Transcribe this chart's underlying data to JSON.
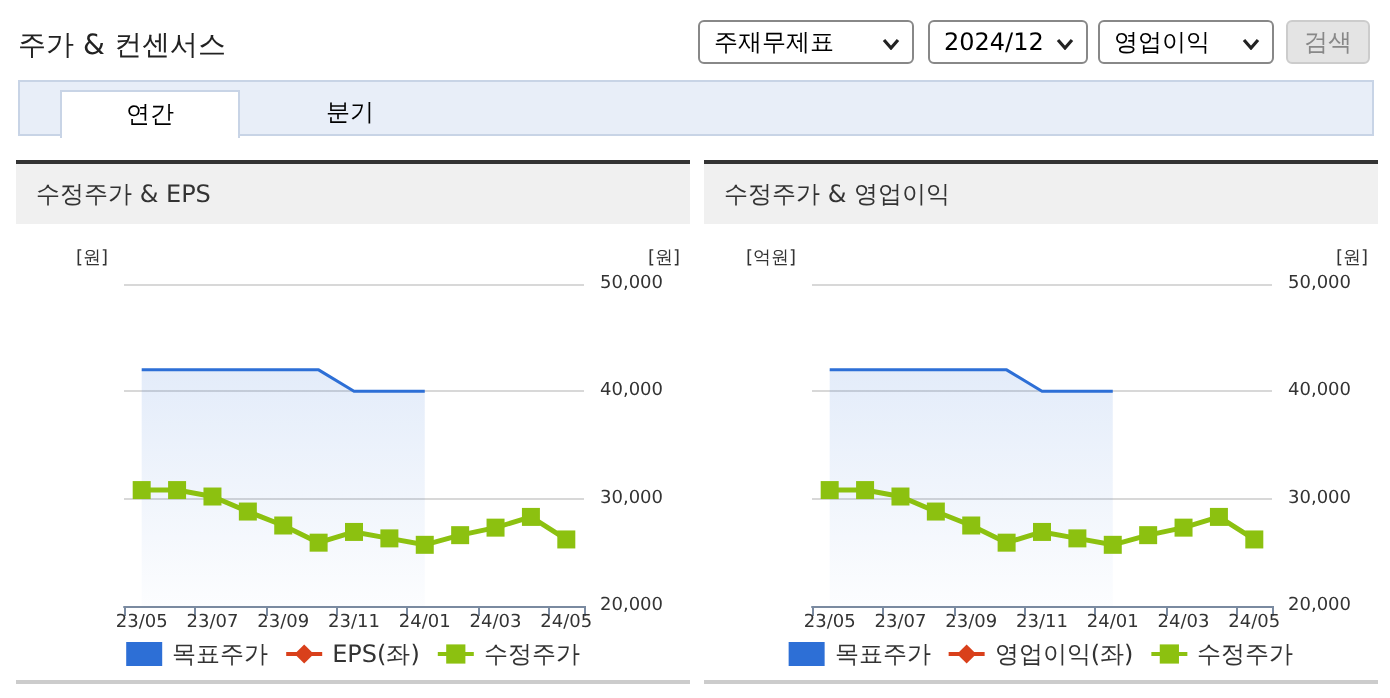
{
  "chart_data": [
    {
      "type": "other",
      "title": "주가 & 컨센서스",
      "annotations": [
        "주재무제표",
        "2024/12",
        "영업이익",
        "검색",
        "연간",
        "분기"
      ]
    },
    {
      "type": "line",
      "title": "수정주가 & EPS",
      "ylabel": "[원]",
      "y2label": "[원]",
      "categories": [
        "23/05",
        null,
        "23/07",
        null,
        "23/09",
        null,
        "23/11",
        null,
        "24/01",
        null,
        "24/03",
        null,
        "24/05"
      ],
      "series": [
        {
          "name": "목표주가",
          "type": "area",
          "axis": "y2",
          "marker": "none",
          "color": "#2d6fd6",
          "values": [
            42000,
            42000,
            42000,
            42000,
            42000,
            42000,
            40000,
            40000,
            40000,
            null,
            null,
            null,
            null
          ]
        },
        {
          "name": "EPS(좌)",
          "type": "line",
          "marker": "diamond",
          "color": "#d9401b",
          "values": [
            null,
            null,
            null,
            null,
            null,
            null,
            null,
            null,
            null,
            null,
            null,
            null,
            null
          ]
        },
        {
          "name": "수정주가",
          "type": "line",
          "axis": "y2",
          "marker": "square",
          "color": "#8cc110",
          "values": [
            30800,
            30800,
            30200,
            28800,
            27500,
            25900,
            26900,
            26300,
            25700,
            26600,
            27300,
            28300,
            26200
          ]
        }
      ],
      "y2lim": [
        20000,
        50000
      ],
      "y2ticks": [
        {
          "value": 20000,
          "label": "20,000"
        },
        {
          "value": 30000,
          "label": "30,000"
        },
        {
          "value": 40000,
          "label": "40,000"
        },
        {
          "value": 50000,
          "label": "50,000"
        }
      ],
      "grid": "y",
      "legend": "bottom"
    },
    {
      "type": "line",
      "title": "수정주가 & 영업이익",
      "ylabel": "[억원]",
      "y2label": "[원]",
      "categories": [
        "23/05",
        null,
        "23/07",
        null,
        "23/09",
        null,
        "23/11",
        null,
        "24/01",
        null,
        "24/03",
        null,
        "24/05"
      ],
      "series": [
        {
          "name": "목표주가",
          "type": "area",
          "axis": "y2",
          "marker": "none",
          "color": "#2d6fd6",
          "values": [
            42000,
            42000,
            42000,
            42000,
            42000,
            42000,
            40000,
            40000,
            40000,
            null,
            null,
            null,
            null
          ]
        },
        {
          "name": "영업이익(좌)",
          "type": "line",
          "marker": "diamond",
          "color": "#d9401b",
          "values": [
            null,
            null,
            null,
            null,
            null,
            null,
            null,
            null,
            null,
            null,
            null,
            null,
            null
          ]
        },
        {
          "name": "수정주가",
          "type": "line",
          "axis": "y2",
          "marker": "square",
          "color": "#8cc110",
          "values": [
            30800,
            30800,
            30200,
            28800,
            27500,
            25900,
            26900,
            26300,
            25700,
            26600,
            27300,
            28300,
            26200
          ]
        }
      ],
      "y2lim": [
        20000,
        50000
      ],
      "y2ticks": [
        {
          "value": 20000,
          "label": "20,000"
        },
        {
          "value": 30000,
          "label": "30,000"
        },
        {
          "value": 40000,
          "label": "40,000"
        },
        {
          "value": 50000,
          "label": "50,000"
        }
      ],
      "grid": "y",
      "legend": "bottom"
    }
  ]
}
